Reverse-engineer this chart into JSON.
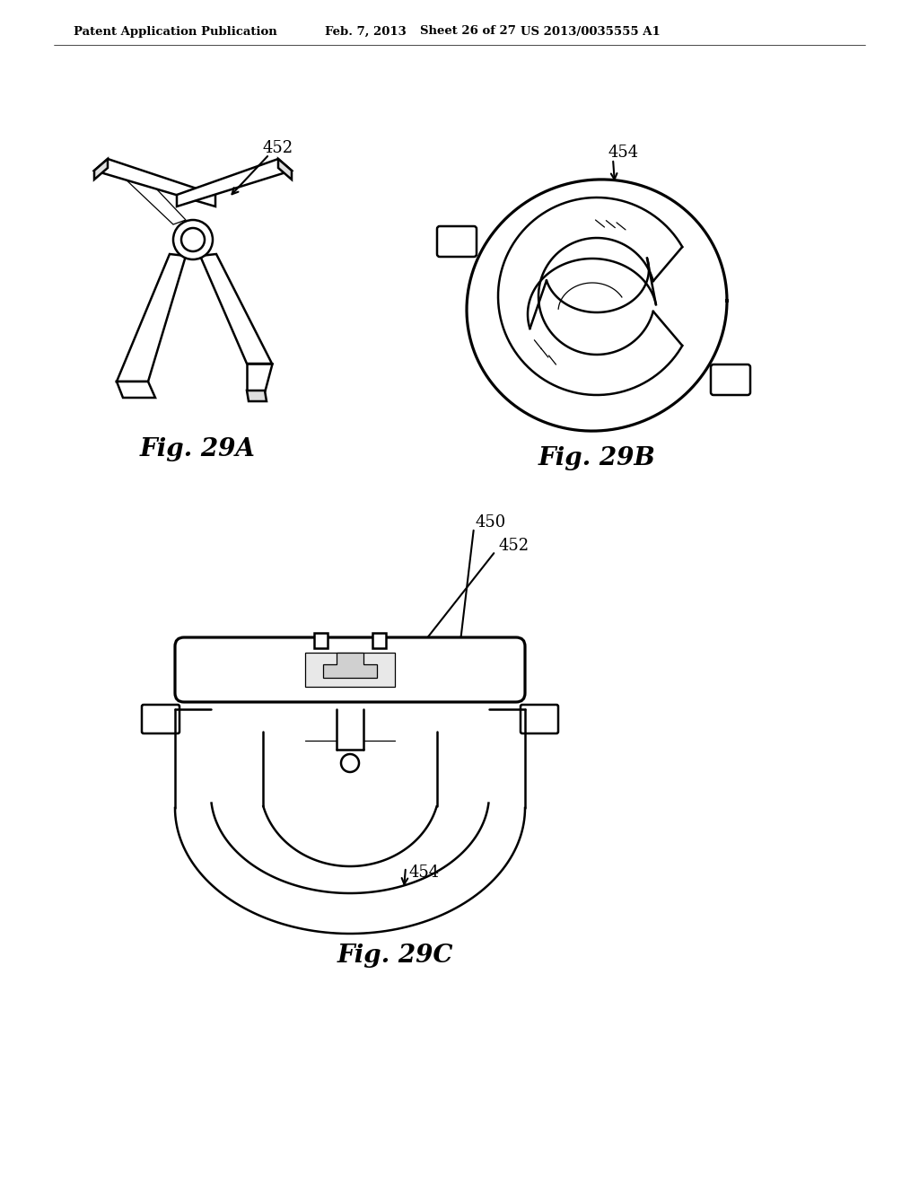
{
  "background_color": "#ffffff",
  "header_text": "Patent Application Publication",
  "header_date": "Feb. 7, 2013",
  "header_sheet": "Sheet 26 of 27",
  "header_patent": "US 2013/0035555 A1",
  "fig29a_label": "Fig. 29A",
  "fig29b_label": "Fig. 29B",
  "fig29c_label": "Fig. 29C",
  "label_452_a": "452",
  "label_454_b": "454",
  "label_450": "450",
  "label_452_c": "452",
  "label_454_c": "454",
  "lw": 1.8,
  "lw_thin": 0.9,
  "lw_thick": 2.5
}
